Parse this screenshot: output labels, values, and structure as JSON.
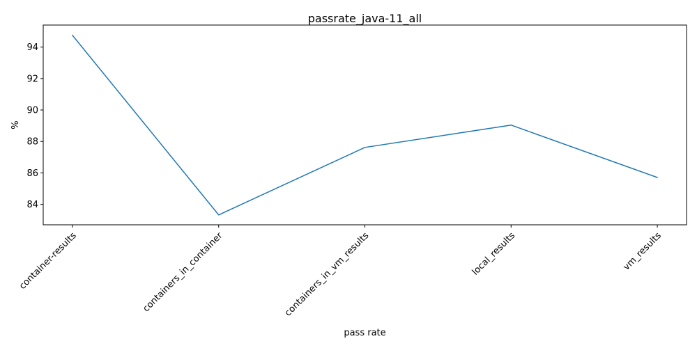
{
  "chart_data": {
    "type": "line",
    "title": "passrate_java-11_all",
    "xlabel": "pass rate",
    "ylabel": "%",
    "categories": [
      "container-results",
      "containers_in_container",
      "containers_in_vm_results",
      "local_results",
      "vm_results"
    ],
    "series": [
      {
        "values": [
          94.75,
          83.33,
          87.62,
          89.04,
          85.71
        ],
        "color": "#1f77b4"
      }
    ],
    "ylim": [
      82.7,
      95.4
    ],
    "yticks": [
      84,
      86,
      88,
      90,
      92,
      94
    ],
    "grid": false,
    "legend": "none"
  }
}
